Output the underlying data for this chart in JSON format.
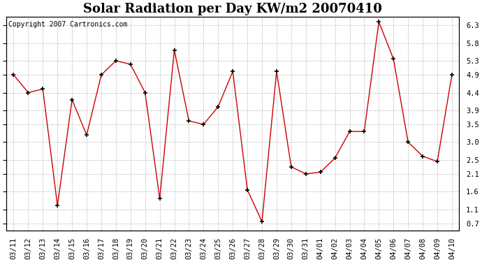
{
  "title": "Solar Radiation per Day KW/m2 20070410",
  "copyright": "Copyright 2007 Cartronics.com",
  "labels": [
    "03/11",
    "03/12",
    "03/13",
    "03/14",
    "03/15",
    "03/16",
    "03/17",
    "03/18",
    "03/19",
    "03/20",
    "03/21",
    "03/22",
    "03/23",
    "03/24",
    "03/25",
    "03/26",
    "03/27",
    "03/28",
    "03/29",
    "03/30",
    "03/31",
    "04/01",
    "04/02",
    "04/03",
    "04/04",
    "04/05",
    "04/06",
    "04/07",
    "04/08",
    "04/09",
    "04/10"
  ],
  "values": [
    4.9,
    4.4,
    4.5,
    1.2,
    4.2,
    3.2,
    4.9,
    5.3,
    5.2,
    4.4,
    1.4,
    5.6,
    3.6,
    3.5,
    4.0,
    5.0,
    1.65,
    0.75,
    5.0,
    2.3,
    2.1,
    2.15,
    2.55,
    3.3,
    3.3,
    6.4,
    5.35,
    3.0,
    2.6,
    2.45,
    4.9
  ],
  "line_color": "#cc0000",
  "marker": "+",
  "marker_color": "#000000",
  "bg_color": "#ffffff",
  "plot_bg_color": "#ffffff",
  "grid_color": "#bbbbbb",
  "ytick_labels": [
    "0.7",
    "1.1",
    "1.6",
    "2.1",
    "2.5",
    "3.0",
    "3.5",
    "3.9",
    "4.4",
    "4.9",
    "5.3",
    "5.8",
    "6.3"
  ],
  "ytick_values": [
    0.7,
    1.1,
    1.6,
    2.1,
    2.5,
    3.0,
    3.5,
    3.9,
    4.4,
    4.9,
    5.3,
    5.8,
    6.3
  ],
  "ylim": [
    0.5,
    6.55
  ],
  "title_fontsize": 13,
  "copyright_fontsize": 7,
  "tick_fontsize": 7.5
}
